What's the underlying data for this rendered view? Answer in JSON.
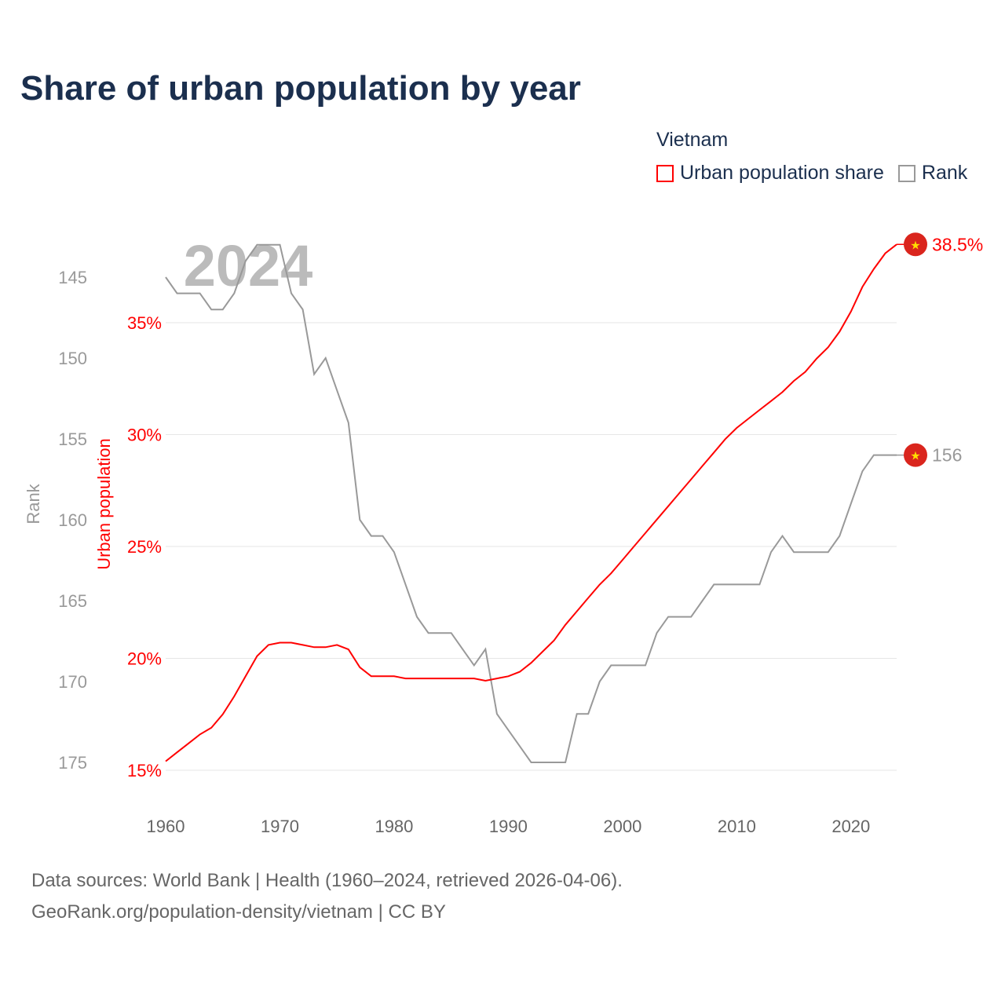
{
  "title": "Share of urban population by year",
  "legend": {
    "title": "Vietnam",
    "items": [
      {
        "label": "Urban population share",
        "color": "#ff0000"
      },
      {
        "label": "Rank",
        "color": "#999999"
      }
    ]
  },
  "footer": {
    "line1": "Data sources: World Bank | Health (1960–2024, retrieved 2026-04-06).",
    "line2": "GeoRank.org/population-density/vietnam | CC BY"
  },
  "chart_data": {
    "type": "line",
    "watermark_year": "2024",
    "x": [
      1960,
      1961,
      1962,
      1963,
      1964,
      1965,
      1966,
      1967,
      1968,
      1969,
      1970,
      1971,
      1972,
      1973,
      1974,
      1975,
      1976,
      1977,
      1978,
      1979,
      1980,
      1981,
      1982,
      1983,
      1984,
      1985,
      1986,
      1987,
      1988,
      1989,
      1990,
      1991,
      1992,
      1993,
      1994,
      1995,
      1996,
      1997,
      1998,
      1999,
      2000,
      2001,
      2002,
      2003,
      2004,
      2005,
      2006,
      2007,
      2008,
      2009,
      2010,
      2011,
      2012,
      2013,
      2014,
      2015,
      2016,
      2017,
      2018,
      2019,
      2020,
      2021,
      2022,
      2023,
      2024
    ],
    "xlim": [
      1960,
      2024
    ],
    "xticks": [
      "1960",
      "1970",
      "1980",
      "1990",
      "2000",
      "2010",
      "2020"
    ],
    "series": [
      {
        "name": "Urban population share",
        "axis": "left",
        "color": "#ff0000",
        "ylabel": "Urban population",
        "ylim": [
          15,
          38.5
        ],
        "yticks": [
          "15%",
          "20%",
          "25%",
          "30%",
          "35%"
        ],
        "end_label": "38.5%",
        "values": [
          15.4,
          15.8,
          16.2,
          16.6,
          16.9,
          17.5,
          18.3,
          19.2,
          20.1,
          20.6,
          20.7,
          20.7,
          20.6,
          20.5,
          20.5,
          20.6,
          20.4,
          19.6,
          19.2,
          19.2,
          19.2,
          19.1,
          19.1,
          19.1,
          19.1,
          19.1,
          19.1,
          19.1,
          19.0,
          19.1,
          19.2,
          19.4,
          19.8,
          20.3,
          20.8,
          21.5,
          22.1,
          22.7,
          23.3,
          23.8,
          24.4,
          25.0,
          25.6,
          26.2,
          26.8,
          27.4,
          28.0,
          28.6,
          29.2,
          29.8,
          30.3,
          30.7,
          31.1,
          31.5,
          31.9,
          32.4,
          32.8,
          33.4,
          33.9,
          34.6,
          35.5,
          36.6,
          37.4,
          38.1,
          38.5
        ]
      },
      {
        "name": "Rank",
        "axis": "left-outer",
        "color": "#999999",
        "ylabel": "Rank",
        "yticks": [
          "145",
          "150",
          "155",
          "160",
          "165",
          "170",
          "175"
        ],
        "inverted": true,
        "end_label": "156",
        "values": [
          145,
          146,
          146,
          146,
          147,
          147,
          146,
          144,
          143,
          143,
          143,
          146,
          147,
          151,
          150,
          152,
          154,
          160,
          161,
          161,
          162,
          164,
          166,
          167,
          167,
          167,
          168,
          169,
          168,
          172,
          173,
          174,
          175,
          175,
          175,
          175,
          172,
          172,
          170,
          169,
          169,
          169,
          169,
          167,
          166,
          166,
          166,
          165,
          164,
          164,
          164,
          164,
          164,
          162,
          161,
          162,
          162,
          162,
          162,
          161,
          159,
          157,
          156,
          156,
          156
        ]
      }
    ]
  }
}
